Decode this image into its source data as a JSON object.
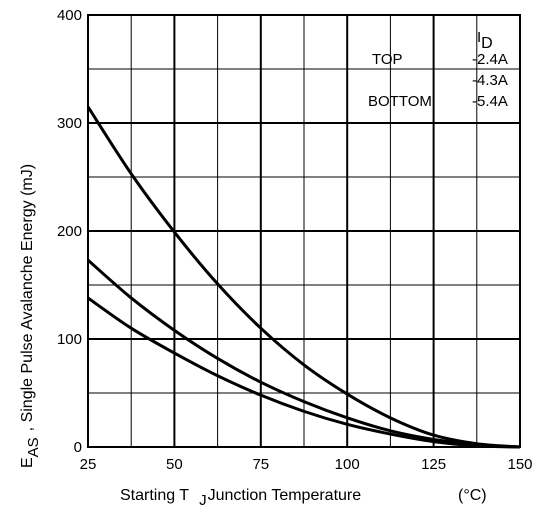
{
  "chart_data": {
    "type": "line",
    "xlabel": {
      "text": "Starting T",
      "subscript": "J",
      "suffix": "Junction Temperature",
      "unit": "(°C)"
    },
    "ylabel": {
      "symbol": "E",
      "subscript": "AS",
      "text": ", Single Pulse Avalanche Energy (mJ)"
    },
    "xlim": [
      25,
      150
    ],
    "ylim": [
      0,
      400
    ],
    "xticks": [
      25,
      50,
      75,
      100,
      125,
      150
    ],
    "yticks": [
      0,
      100,
      200,
      300,
      400
    ],
    "grid": true,
    "legend": {
      "title_symbol": "I",
      "title_subscript": "D",
      "entries": [
        {
          "position_label": "TOP",
          "value": "-2.4A"
        },
        {
          "position_label": "",
          "value": "-4.3A"
        },
        {
          "position_label": "BOTTOM",
          "value": "-5.4A"
        }
      ]
    },
    "series": [
      {
        "name": "-2.4A",
        "x": [
          25,
          37.5,
          50,
          62.5,
          75,
          87.5,
          100,
          112.5,
          125,
          137.5,
          150
        ],
        "y": [
          315,
          253,
          199,
          151,
          110,
          76,
          49,
          27,
          11,
          3,
          0
        ]
      },
      {
        "name": "-4.3A",
        "x": [
          25,
          37.5,
          50,
          62.5,
          75,
          87.5,
          100,
          112.5,
          125,
          137.5,
          150
        ],
        "y": [
          173,
          138,
          108,
          82,
          60,
          42,
          27,
          15,
          7,
          2,
          0
        ]
      },
      {
        "name": "-5.4A",
        "x": [
          25,
          37.5,
          50,
          62.5,
          75,
          87.5,
          100,
          112.5,
          125,
          137.5,
          150
        ],
        "y": [
          138,
          110,
          87,
          66,
          48,
          33,
          21,
          12,
          5,
          1,
          0
        ]
      }
    ]
  }
}
